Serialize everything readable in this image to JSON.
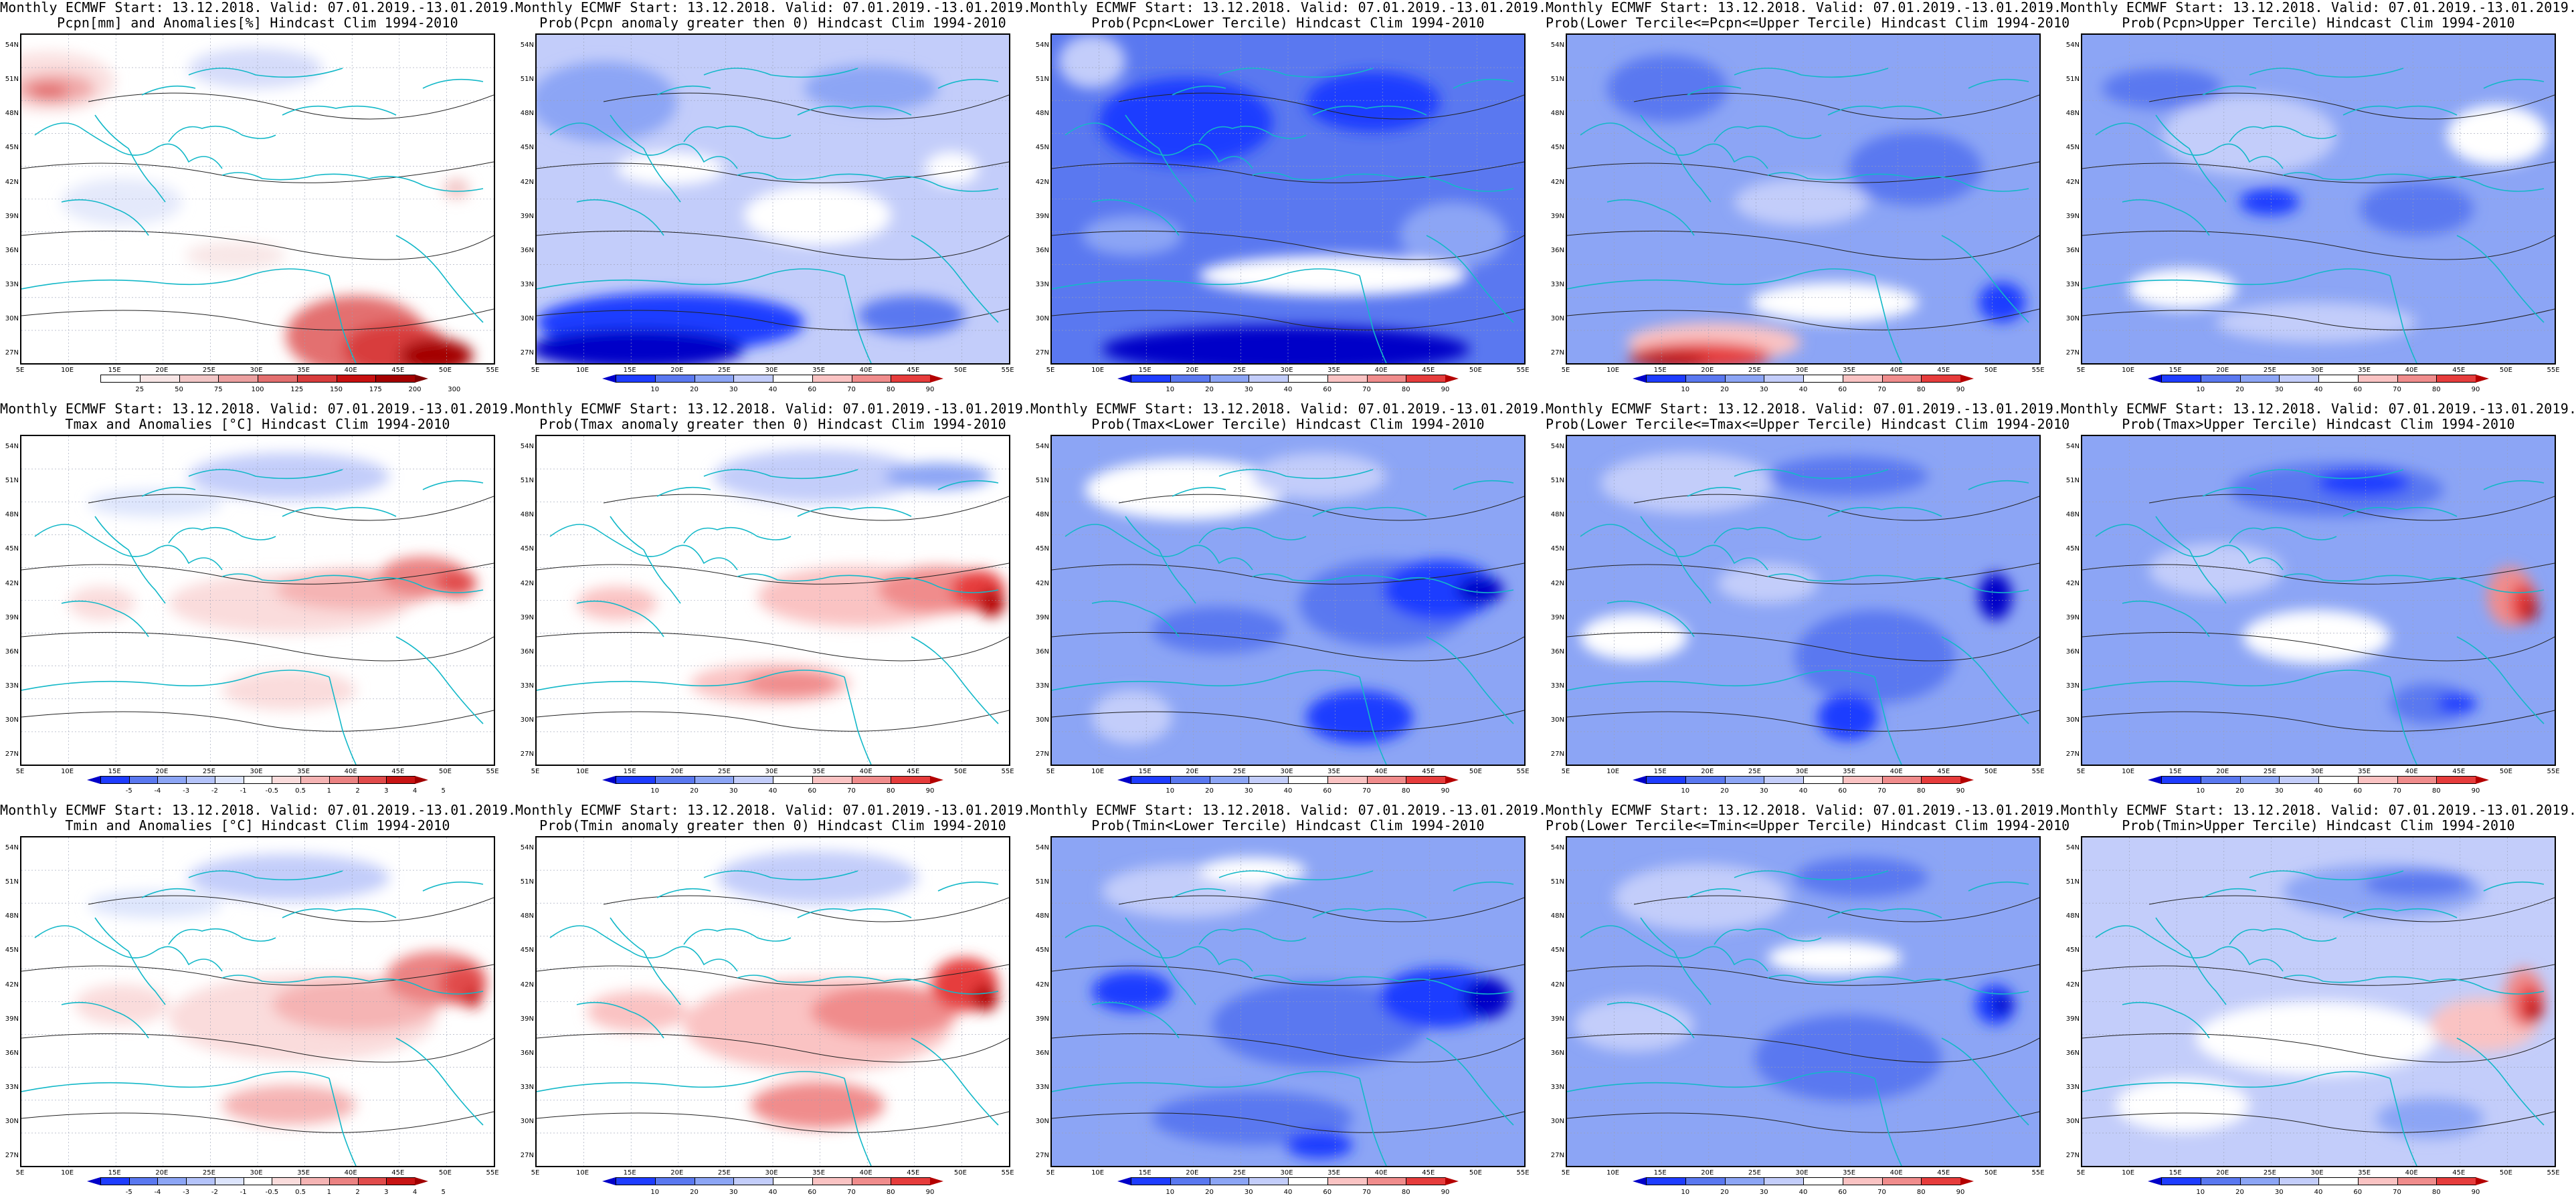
{
  "panels": [
    {
      "title1": "Monthly ECMWF Start: 13.12.2018. Valid: 07.01.2019.-13.01.2019.",
      "title2": "Pcpn[mm] and Anomalies[%] Hindcast Clim 1994-2010",
      "scale": "pcpn",
      "field": "pcpn_anom"
    },
    {
      "title1": "Monthly ECMWF Start: 13.12.2018. Valid: 07.01.2019.-13.01.2019.",
      "title2": "Prob(Pcpn anomaly greater then 0) Hindcast Clim 1994-2010",
      "scale": "prob",
      "field": "pcpn_pos"
    },
    {
      "title1": "Monthly ECMWF Start: 13.12.2018. Valid: 07.01.2019.-13.01.2019.",
      "title2": "Prob(Pcpn<Lower Tercile) Hindcast Clim 1994-2010",
      "scale": "prob",
      "field": "pcpn_lower"
    },
    {
      "title1": "Monthly ECMWF Start: 13.12.2018. Valid: 07.01.2019.-13.01.2019.",
      "title2": "Prob(Lower Tercile<=Pcpn<=Upper Tercile) Hindcast Clim 1994-2010",
      "scale": "prob",
      "field": "pcpn_middle"
    },
    {
      "title1": "Monthly ECMWF Start: 13.12.2018. Valid: 07.01.2019.-13.01.2019.",
      "title2": "Prob(Pcpn>Upper Tercile) Hindcast Clim 1994-2010",
      "scale": "prob",
      "field": "pcpn_upper"
    },
    {
      "title1": "Monthly ECMWF Start: 13.12.2018. Valid: 07.01.2019.-13.01.2019.",
      "title2": "Tmax and Anomalies [°C] Hindcast Clim 1994-2010",
      "scale": "temp",
      "field": "tmax_anom"
    },
    {
      "title1": "Monthly ECMWF Start: 13.12.2018. Valid: 07.01.2019.-13.01.2019.",
      "title2": "Prob(Tmax anomaly greater then 0) Hindcast Clim 1994-2010",
      "scale": "prob",
      "field": "tmax_pos"
    },
    {
      "title1": "Monthly ECMWF Start: 13.12.2018. Valid: 07.01.2019.-13.01.2019.",
      "title2": "Prob(Tmax<Lower Tercile) Hindcast Clim 1994-2010",
      "scale": "prob",
      "field": "tmax_lower"
    },
    {
      "title1": "Monthly ECMWF Start: 13.12.2018. Valid: 07.01.2019.-13.01.2019.",
      "title2": "Prob(Lower Tercile<=Tmax<=Upper Tercile) Hindcast Clim 1994-2010",
      "scale": "prob",
      "field": "tmax_middle"
    },
    {
      "title1": "Monthly ECMWF Start: 13.12.2018. Valid: 07.01.2019.-13.01.2019.",
      "title2": "Prob(Tmax>Upper Tercile) Hindcast Clim 1994-2010",
      "scale": "prob",
      "field": "tmax_upper"
    },
    {
      "title1": "Monthly ECMWF Start: 13.12.2018. Valid: 07.01.2019.-13.01.2019.",
      "title2": "Tmin and Anomalies [°C] Hindcast Clim 1994-2010",
      "scale": "temp",
      "field": "tmin_anom"
    },
    {
      "title1": "Monthly ECMWF Start: 13.12.2018. Valid: 07.01.2019.-13.01.2019.",
      "title2": "Prob(Tmin anomaly greater then 0) Hindcast Clim 1994-2010",
      "scale": "prob",
      "field": "tmin_pos"
    },
    {
      "title1": "Monthly ECMWF Start: 13.12.2018. Valid: 07.01.2019.-13.01.2019.",
      "title2": "Prob(Tmin<Lower Tercile) Hindcast Clim 1994-2010",
      "scale": "prob",
      "field": "tmin_lower"
    },
    {
      "title1": "Monthly ECMWF Start: 13.12.2018. Valid: 07.01.2019.-13.01.2019.",
      "title2": "Prob(Lower Tercile<=Tmin<=Upper Tercile) Hindcast Clim 1994-2010",
      "scale": "prob",
      "field": "tmin_middle"
    },
    {
      "title1": "Monthly ECMWF Start: 13.12.2018. Valid: 07.01.2019.-13.01.2019.",
      "title2": "Prob(Tmin>Upper Tercile) Hindcast Clim 1994-2010",
      "scale": "prob",
      "field": "tmin_upper"
    }
  ],
  "lat_labels": [
    "54N",
    "51N",
    "48N",
    "45N",
    "42N",
    "39N",
    "36N",
    "33N",
    "30N",
    "27N"
  ],
  "lon_labels": [
    "5E",
    "10E",
    "15E",
    "20E",
    "25E",
    "30E",
    "35E",
    "40E",
    "45E",
    "50E",
    "55E"
  ],
  "scales": {
    "pcpn": {
      "labels": [
        "25",
        "50",
        "75",
        "100",
        "125",
        "150",
        "175",
        "200",
        "300"
      ],
      "colors": [
        "#ffffff",
        "#ffffff",
        "#f8e6e6",
        "#f2c6c6",
        "#eca0a0",
        "#e36f6f",
        "#d83c3c",
        "#c71010",
        "#a40000",
        "#7e0000"
      ]
    },
    "prob": {
      "labels": [
        "10",
        "20",
        "30",
        "40",
        "60",
        "70",
        "80",
        "90"
      ],
      "colors": [
        "#0000c8",
        "#1e3cff",
        "#5a78f0",
        "#8ca5f5",
        "#c3cdfa",
        "#ffffff",
        "#fac3c3",
        "#f08c8c",
        "#e63c3c",
        "#b40000"
      ]
    },
    "temp": {
      "labels": [
        "-5",
        "-4",
        "-3",
        "-2",
        "-1",
        "-0.5",
        "0.5",
        "1",
        "2",
        "3",
        "4",
        "5"
      ],
      "colors": [
        "#0000c8",
        "#1e3cff",
        "#5a78f0",
        "#8ca5f5",
        "#b4c3fa",
        "#dce4fc",
        "#ffffff",
        "#fadcdc",
        "#f5b4b4",
        "#eb8282",
        "#e14b4b",
        "#c81414",
        "#a00000"
      ]
    }
  },
  "fields": {
    "pcpn_anom": {
      "base": "#ffffff",
      "blobs": [
        [
          "#fae0e0",
          40,
          70,
          200,
          90
        ],
        [
          "#f0a8a8",
          50,
          80,
          120,
          45
        ],
        [
          "#e36f6f",
          40,
          85,
          60,
          25
        ],
        [
          "#e36f6f",
          500,
          450,
          210,
          120
        ],
        [
          "#d83c3c",
          560,
          470,
          160,
          80
        ],
        [
          "#a40000",
          620,
          480,
          110,
          50
        ],
        [
          "#d5dcfa",
          350,
          50,
          200,
          60
        ],
        [
          "#e4e9fb",
          150,
          250,
          180,
          70
        ],
        [
          "#f2c6c6",
          650,
          230,
          40,
          30
        ],
        [
          "#f8e6e6",
          320,
          330,
          150,
          40
        ]
      ]
    },
    "pcpn_pos": {
      "base": "#c3cdfa",
      "blobs": [
        [
          "#8ca5f5",
          100,
          100,
          220,
          120
        ],
        [
          "#ffffff",
          420,
          270,
          220,
          90
        ],
        [
          "#ffffff",
          200,
          200,
          160,
          50
        ],
        [
          "#8ca5f5",
          500,
          80,
          200,
          70
        ],
        [
          "#1e3cff",
          200,
          430,
          400,
          90
        ],
        [
          "#0000c8",
          150,
          470,
          320,
          60
        ],
        [
          "#5a78f0",
          560,
          420,
          160,
          60
        ],
        [
          "#ffffff",
          620,
          200,
          80,
          50
        ]
      ]
    },
    "pcpn_lower": {
      "base": "#5a78f0",
      "blobs": [
        [
          "#1e3cff",
          200,
          130,
          260,
          130
        ],
        [
          "#1e3cff",
          480,
          100,
          200,
          90
        ],
        [
          "#8ca5f5",
          600,
          300,
          160,
          100
        ],
        [
          "#ffffff",
          420,
          360,
          400,
          60
        ],
        [
          "#0000c8",
          350,
          470,
          550,
          70
        ],
        [
          "#c3cdfa",
          60,
          40,
          100,
          80
        ],
        [
          "#8ca5f5",
          120,
          300,
          150,
          60
        ]
      ]
    },
    "pcpn_middle": {
      "base": "#8ca5f5",
      "blobs": [
        [
          "#5a78f0",
          150,
          80,
          180,
          100
        ],
        [
          "#5a78f0",
          520,
          200,
          200,
          110
        ],
        [
          "#c3cdfa",
          350,
          250,
          200,
          70
        ],
        [
          "#ffffff",
          400,
          400,
          250,
          60
        ],
        [
          "#fac3c3",
          220,
          460,
          260,
          60
        ],
        [
          "#e63c3c",
          200,
          480,
          210,
          40
        ],
        [
          "#b40000",
          150,
          485,
          120,
          20
        ],
        [
          "#1e3cff",
          650,
          400,
          70,
          60
        ]
      ]
    },
    "pcpn_upper": {
      "base": "#8ca5f5",
      "blobs": [
        [
          "#c3cdfa",
          250,
          150,
          260,
          120
        ],
        [
          "#ffffff",
          620,
          150,
          150,
          90
        ],
        [
          "#5a78f0",
          120,
          80,
          180,
          60
        ],
        [
          "#5a78f0",
          500,
          260,
          170,
          80
        ],
        [
          "#1e3cff",
          280,
          250,
          90,
          40
        ],
        [
          "#c3cdfa",
          350,
          430,
          300,
          60
        ],
        [
          "#ffffff",
          150,
          380,
          160,
          60
        ]
      ]
    },
    "tmax_anom": {
      "base": "#ffffff",
      "blobs": [
        [
          "#c3cdfa",
          400,
          60,
          300,
          70
        ],
        [
          "#dce4fc",
          200,
          100,
          200,
          40
        ],
        [
          "#fadcdc",
          400,
          250,
          360,
          90
        ],
        [
          "#f5b4b4",
          500,
          230,
          240,
          60
        ],
        [
          "#eb8282",
          600,
          210,
          130,
          60
        ],
        [
          "#e14b4b",
          650,
          220,
          60,
          40
        ],
        [
          "#fadcdc",
          120,
          250,
          100,
          50
        ],
        [
          "#fadcdc",
          400,
          380,
          200,
          60
        ]
      ]
    },
    "tmax_pos": {
      "base": "#ffffff",
      "blobs": [
        [
          "#c3cdfa",
          420,
          60,
          310,
          80
        ],
        [
          "#8ca5f5",
          600,
          60,
          160,
          40
        ],
        [
          "#fac3c3",
          480,
          240,
          300,
          90
        ],
        [
          "#f08c8c",
          600,
          230,
          180,
          70
        ],
        [
          "#e63c3c",
          660,
          230,
          80,
          60
        ],
        [
          "#b40000",
          680,
          250,
          40,
          40
        ],
        [
          "#fac3c3",
          350,
          370,
          240,
          60
        ],
        [
          "#f08c8c",
          380,
          370,
          140,
          40
        ],
        [
          "#fac3c3",
          120,
          250,
          120,
          50
        ]
      ]
    },
    "tmax_lower": {
      "base": "#8ca5f5",
      "blobs": [
        [
          "#ffffff",
          200,
          80,
          300,
          90
        ],
        [
          "#c3cdfa",
          400,
          60,
          200,
          70
        ],
        [
          "#5a78f0",
          500,
          250,
          260,
          130
        ],
        [
          "#1e3cff",
          580,
          230,
          170,
          90
        ],
        [
          "#0000c8",
          640,
          230,
          70,
          40
        ],
        [
          "#5a78f0",
          250,
          290,
          200,
          70
        ],
        [
          "#1e3cff",
          460,
          420,
          160,
          80
        ],
        [
          "#c3cdfa",
          120,
          420,
          120,
          80
        ]
      ]
    },
    "tmax_middle": {
      "base": "#8ca5f5",
      "blobs": [
        [
          "#c3cdfa",
          180,
          70,
          260,
          90
        ],
        [
          "#5a78f0",
          420,
          60,
          240,
          60
        ],
        [
          "#5a78f0",
          460,
          330,
          240,
          140
        ],
        [
          "#1e3cff",
          420,
          420,
          90,
          70
        ],
        [
          "#0000c8",
          640,
          240,
          50,
          70
        ],
        [
          "#ffffff",
          100,
          300,
          160,
          70
        ],
        [
          "#c3cdfa",
          300,
          220,
          150,
          60
        ]
      ]
    },
    "tmax_upper": {
      "base": "#8ca5f5",
      "blobs": [
        [
          "#5a78f0",
          380,
          80,
          320,
          80
        ],
        [
          "#1e3cff",
          420,
          70,
          140,
          40
        ],
        [
          "#c3cdfa",
          200,
          200,
          200,
          80
        ],
        [
          "#ffffff",
          350,
          300,
          220,
          80
        ],
        [
          "#f08c8c",
          640,
          240,
          70,
          90
        ],
        [
          "#e63c3c",
          660,
          250,
          40,
          60
        ],
        [
          "#b40000",
          670,
          260,
          20,
          30
        ],
        [
          "#5a78f0",
          520,
          400,
          120,
          60
        ],
        [
          "#1e3cff",
          560,
          400,
          60,
          30
        ]
      ]
    },
    "tmin_anom": {
      "base": "#ffffff",
      "blobs": [
        [
          "#c3cdfa",
          400,
          60,
          300,
          70
        ],
        [
          "#dce4fc",
          200,
          100,
          200,
          40
        ],
        [
          "#fadcdc",
          420,
          270,
          400,
          130
        ],
        [
          "#f5b4b4",
          500,
          250,
          250,
          80
        ],
        [
          "#eb8282",
          620,
          210,
          150,
          80
        ],
        [
          "#e14b4b",
          660,
          220,
          70,
          60
        ],
        [
          "#c81414",
          675,
          240,
          25,
          30
        ],
        [
          "#fadcdc",
          150,
          250,
          140,
          60
        ],
        [
          "#f5b4b4",
          400,
          400,
          200,
          60
        ]
      ]
    },
    "tmin_pos": {
      "base": "#ffffff",
      "blobs": [
        [
          "#c3cdfa",
          420,
          60,
          300,
          80
        ],
        [
          "#fac3c3",
          420,
          280,
          400,
          140
        ],
        [
          "#f08c8c",
          520,
          260,
          220,
          80
        ],
        [
          "#e63c3c",
          640,
          220,
          100,
          80
        ],
        [
          "#b40000",
          670,
          240,
          40,
          40
        ],
        [
          "#fac3c3",
          150,
          260,
          150,
          60
        ],
        [
          "#f08c8c",
          420,
          400,
          200,
          70
        ]
      ]
    },
    "tmin_lower": {
      "base": "#8ca5f5",
      "blobs": [
        [
          "#c3cdfa",
          200,
          80,
          250,
          80
        ],
        [
          "#ffffff",
          300,
          50,
          160,
          40
        ],
        [
          "#5a78f0",
          400,
          280,
          320,
          130
        ],
        [
          "#1e3cff",
          580,
          240,
          180,
          90
        ],
        [
          "#0000c8",
          650,
          240,
          70,
          60
        ],
        [
          "#1e3cff",
          120,
          230,
          120,
          60
        ],
        [
          "#5a78f0",
          300,
          420,
          300,
          80
        ],
        [
          "#1e3cff",
          400,
          460,
          100,
          40
        ]
      ]
    },
    "tmin_middle": {
      "base": "#8ca5f5",
      "blobs": [
        [
          "#c3cdfa",
          200,
          90,
          260,
          100
        ],
        [
          "#5a78f0",
          440,
          60,
          200,
          60
        ],
        [
          "#5a78f0",
          420,
          330,
          280,
          130
        ],
        [
          "#1e3cff",
          640,
          250,
          60,
          60
        ],
        [
          "#0000c8",
          650,
          250,
          30,
          30
        ],
        [
          "#c3cdfa",
          100,
          280,
          180,
          80
        ],
        [
          "#ffffff",
          400,
          180,
          200,
          50
        ]
      ]
    },
    "tmin_upper": {
      "base": "#c3cdfa",
      "blobs": [
        [
          "#8ca5f5",
          450,
          80,
          300,
          80
        ],
        [
          "#5a78f0",
          500,
          70,
          160,
          40
        ],
        [
          "#ffffff",
          350,
          300,
          360,
          110
        ],
        [
          "#ffffff",
          150,
          400,
          200,
          80
        ],
        [
          "#fac3c3",
          600,
          280,
          160,
          80
        ],
        [
          "#f08c8c",
          660,
          240,
          60,
          90
        ],
        [
          "#e63c3c",
          670,
          250,
          40,
          60
        ],
        [
          "#b40000",
          675,
          260,
          20,
          30
        ],
        [
          "#8ca5f5",
          520,
          420,
          160,
          60
        ]
      ]
    }
  }
}
